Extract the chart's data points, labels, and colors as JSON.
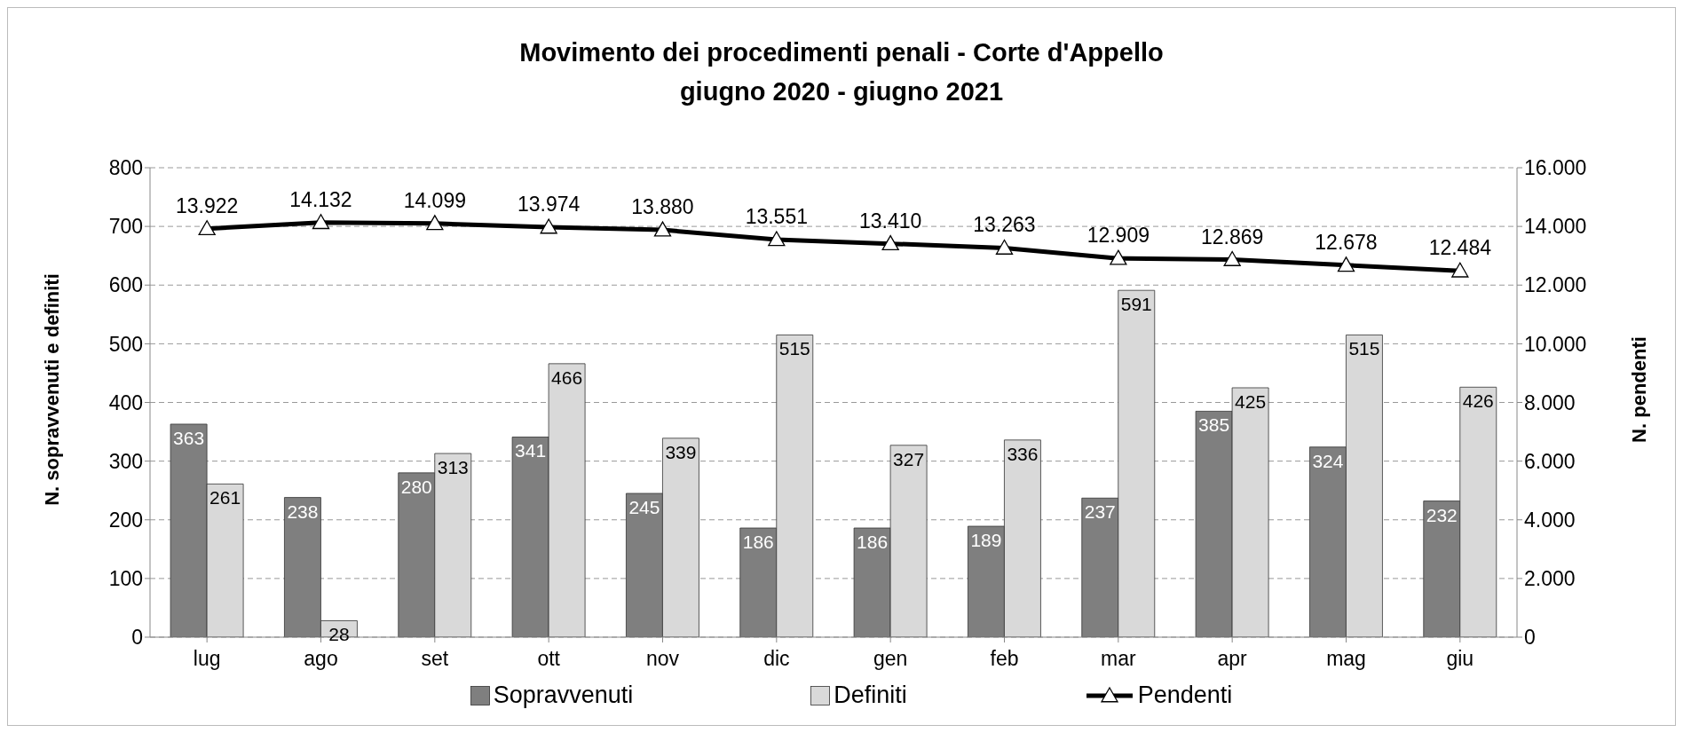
{
  "chart_data": {
    "type": "bar",
    "title": "Movimento dei procedimenti penali - Corte d'Appello\ngiugno 2020 - giugno 2021",
    "ylabel": "N. sopravvenuti e definiti",
    "y2label": "N. pendenti",
    "categories": [
      "lug",
      "ago",
      "set",
      "ott",
      "nov",
      "dic",
      "gen",
      "feb",
      "mar",
      "apr",
      "mag",
      "giu"
    ],
    "series": [
      {
        "name": "Sopravvenuti",
        "color": "#7f7f7f",
        "values": [
          363,
          238,
          280,
          341,
          245,
          186,
          186,
          189,
          237,
          385,
          324,
          232
        ]
      },
      {
        "name": "Definiti",
        "color": "#d9d9d9",
        "values": [
          261,
          28,
          313,
          466,
          339,
          515,
          327,
          336,
          591,
          425,
          515,
          426
        ]
      },
      {
        "name": "Pendenti",
        "type": "line",
        "axis": "y2",
        "color": "#000000",
        "marker": "triangle",
        "values": [
          13922,
          14132,
          14099,
          13974,
          13880,
          13551,
          13410,
          13263,
          12909,
          12869,
          12678,
          12484
        ],
        "value_labels": [
          "13.922",
          "14.132",
          "14.099",
          "13.974",
          "13.880",
          "13.551",
          "13.410",
          "13.263",
          "12.909",
          "12.869",
          "12.678",
          "12.484"
        ]
      }
    ],
    "data_labels": true,
    "ylim": [
      0,
      800
    ],
    "yticks": [
      0,
      100,
      200,
      300,
      400,
      500,
      600,
      700,
      800
    ],
    "y2lim": [
      0,
      16000
    ],
    "y2ticks": [
      0,
      {
        "value": 2000,
        "label": "2.000"
      },
      {
        "value": 4000,
        "label": "4.000"
      },
      {
        "value": 6000,
        "label": "6.000"
      },
      {
        "value": 8000,
        "label": "8.000"
      },
      {
        "value": 10000,
        "label": "10.000"
      },
      {
        "value": 12000,
        "label": "12.000"
      },
      {
        "value": 14000,
        "label": "14.000"
      },
      {
        "value": 16000,
        "label": "16.000"
      }
    ],
    "grid": "y",
    "legend": "bottom"
  }
}
